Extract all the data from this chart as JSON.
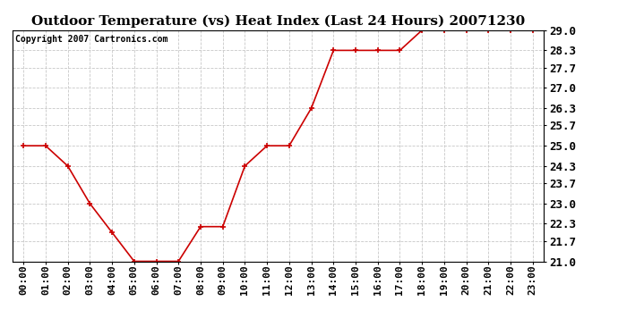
{
  "title": "Outdoor Temperature (vs) Heat Index (Last 24 Hours) 20071230",
  "copyright_text": "Copyright 2007 Cartronics.com",
  "x_labels": [
    "00:00",
    "01:00",
    "02:00",
    "03:00",
    "04:00",
    "05:00",
    "06:00",
    "07:00",
    "08:00",
    "09:00",
    "10:00",
    "11:00",
    "12:00",
    "13:00",
    "14:00",
    "15:00",
    "16:00",
    "17:00",
    "18:00",
    "19:00",
    "20:00",
    "21:00",
    "22:00",
    "23:00"
  ],
  "y_values": [
    25.0,
    25.0,
    24.3,
    23.0,
    22.0,
    21.0,
    21.0,
    21.0,
    22.2,
    22.2,
    24.3,
    25.0,
    25.0,
    26.3,
    28.3,
    28.3,
    28.3,
    28.3,
    29.0,
    29.0,
    29.0,
    29.0,
    29.0,
    29.0
  ],
  "y_ticks": [
    21.0,
    21.7,
    22.3,
    23.0,
    23.7,
    24.3,
    25.0,
    25.7,
    26.3,
    27.0,
    27.7,
    28.3,
    29.0
  ],
  "ylim": [
    21.0,
    29.0
  ],
  "line_color": "#cc0000",
  "marker": "+",
  "marker_color": "#cc0000",
  "background_color": "#ffffff",
  "grid_color": "#c8c8c8",
  "title_fontsize": 11,
  "copyright_fontsize": 7,
  "tick_fontsize": 8,
  "ytick_fontsize": 9
}
